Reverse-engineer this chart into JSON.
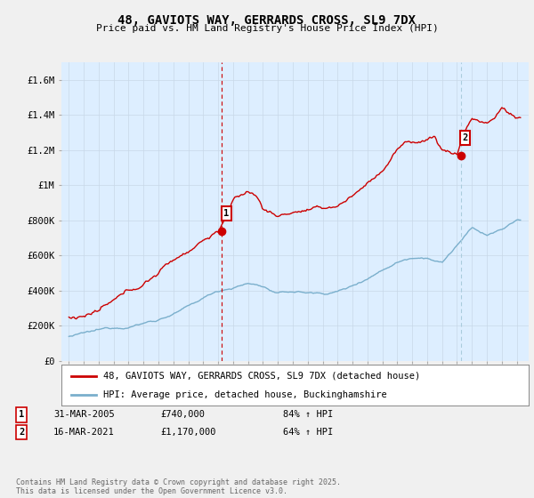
{
  "title": "48, GAVIOTS WAY, GERRARDS CROSS, SL9 7DX",
  "subtitle": "Price paid vs. HM Land Registry's House Price Index (HPI)",
  "ylabel_ticks": [
    "£0",
    "£200K",
    "£400K",
    "£600K",
    "£800K",
    "£1M",
    "£1.2M",
    "£1.4M",
    "£1.6M"
  ],
  "ylim": [
    0,
    1700000
  ],
  "ytick_values": [
    0,
    200000,
    400000,
    600000,
    800000,
    1000000,
    1200000,
    1400000,
    1600000
  ],
  "xlim_start": 1994.5,
  "xlim_end": 2025.8,
  "red_color": "#cc0000",
  "blue_color": "#7aafcc",
  "vline1_color": "#cc0000",
  "vline1_style": "--",
  "vline2_color": "#aaccdd",
  "vline2_style": "--",
  "marker1_x": 2005.25,
  "marker1_y": 740000,
  "marker2_x": 2021.25,
  "marker2_y": 1170000,
  "vline1_x": 2005.25,
  "vline2_x": 2021.25,
  "legend1_label": "48, GAVIOTS WAY, GERRARDS CROSS, SL9 7DX (detached house)",
  "legend2_label": "HPI: Average price, detached house, Buckinghamshire",
  "note1_num": "1",
  "note1_date": "31-MAR-2005",
  "note1_price": "£740,000",
  "note1_hpi": "84% ↑ HPI",
  "note2_num": "2",
  "note2_date": "16-MAR-2021",
  "note2_price": "£1,170,000",
  "note2_hpi": "64% ↑ HPI",
  "footer": "Contains HM Land Registry data © Crown copyright and database right 2025.\nThis data is licensed under the Open Government Licence v3.0.",
  "bg_color": "#f0f0f0",
  "plot_bg_color": "#ddeeff"
}
